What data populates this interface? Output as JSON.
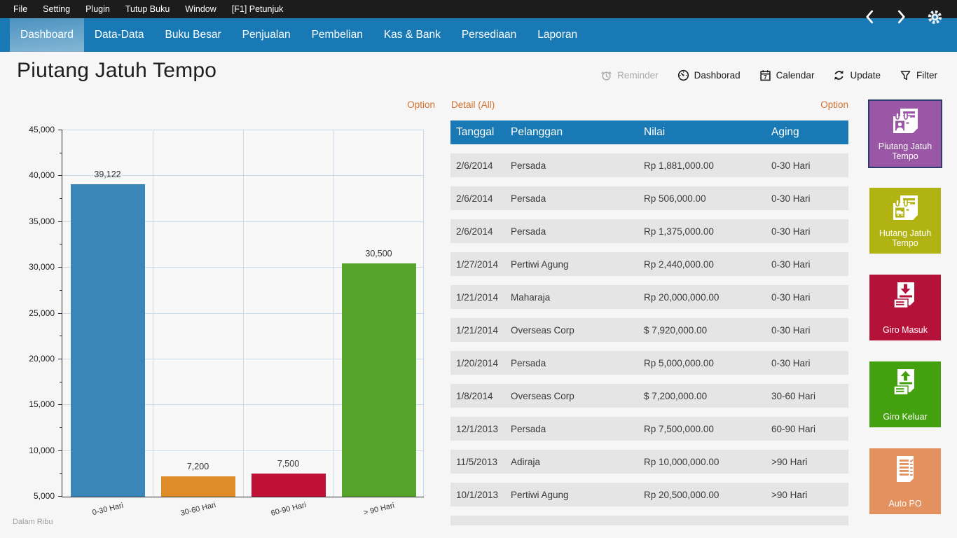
{
  "colors": {
    "menubar-bg": "#1c1c1c",
    "navbar-blue": "#1879b5",
    "tab-active-top": "#4b92c0",
    "tab-active-bottom": "#85b7d5",
    "page-bg": "#f6f6f6",
    "accent-link": "#d2722e",
    "table-header-bg": "#1879b5",
    "row-bg": "#e5e5e5",
    "grid-line": "#c8daec",
    "axis-color": "#2b2b2b",
    "selected-tile-border": "#2d3c6b"
  },
  "menubar": {
    "items": [
      "File",
      "Setting",
      "Plugin",
      "Tutup Buku",
      "Window",
      "[F1] Petunjuk"
    ]
  },
  "navbar": {
    "tabs": [
      {
        "label": "Dashboard",
        "active": true
      },
      {
        "label": "Data-Data",
        "active": false
      },
      {
        "label": "Buku Besar",
        "active": false
      },
      {
        "label": "Penjualan",
        "active": false
      },
      {
        "label": "Pembelian",
        "active": false
      },
      {
        "label": "Kas & Bank",
        "active": false
      },
      {
        "label": "Persediaan",
        "active": false
      },
      {
        "label": "Laporan",
        "active": false
      }
    ]
  },
  "header": {
    "title": "Piutang Jatuh Tempo",
    "actions": [
      {
        "label": "Reminder",
        "icon": "alarm-icon",
        "disabled": true
      },
      {
        "label": "Dashborad",
        "icon": "gauge-icon",
        "disabled": false
      },
      {
        "label": "Calendar",
        "icon": "calendar-icon",
        "disabled": false
      },
      {
        "label": "Update",
        "icon": "refresh-icon",
        "disabled": false
      },
      {
        "label": "Filter",
        "icon": "filter-icon",
        "disabled": false
      }
    ]
  },
  "chart_panel": {
    "option_label": "Option",
    "footnote": "Dalam Ribu"
  },
  "chart_data": {
    "type": "bar",
    "categories": [
      "0-30 Hari",
      "30-60 Hari",
      "60-90 Hari",
      "> 90 Hari"
    ],
    "values": [
      39122,
      7200,
      7500,
      30500
    ],
    "value_labels": [
      "39,122",
      "7,200",
      "7,500",
      "30,500"
    ],
    "bar_colors": [
      "#3a86b8",
      "#de8c28",
      "#c11036",
      "#57a42d"
    ],
    "ylim": [
      5000,
      45000
    ],
    "ytick_step": 5000,
    "grid": true,
    "unit_note": "Dalam Ribu",
    "title": "Piutang Jatuh Tempo"
  },
  "detail": {
    "title": "Detail (All)",
    "option_label": "Option",
    "columns": [
      "Tanggal",
      "Pelanggan",
      "Nilai",
      "Aging"
    ],
    "rows": [
      [
        "2/6/2014",
        "Persada",
        "Rp 1,881,000.00",
        "0-30 Hari"
      ],
      [
        "2/6/2014",
        "Persada",
        "Rp 506,000.00",
        "0-30 Hari"
      ],
      [
        "2/6/2014",
        "Persada",
        "Rp 1,375,000.00",
        "0-30 Hari"
      ],
      [
        "1/27/2014",
        "Pertiwi Agung",
        "Rp 2,440,000.00",
        "0-30 Hari"
      ],
      [
        "1/21/2014",
        "Maharaja",
        "Rp 20,000,000.00",
        "0-30 Hari"
      ],
      [
        "1/21/2014",
        "Overseas Corp",
        "$ 7,920,000.00",
        "0-30 Hari"
      ],
      [
        "1/20/2014",
        "Persada",
        "Rp 5,000,000.00",
        "0-30 Hari"
      ],
      [
        "1/8/2014",
        "Overseas Corp",
        "$ 7,200,000.00",
        "30-60 Hari"
      ],
      [
        "12/1/2013",
        "Persada",
        "Rp 7,500,000.00",
        "60-90 Hari"
      ],
      [
        "11/5/2013",
        "Adiraja",
        "Rp 10,000,000.00",
        ">90 Hari"
      ],
      [
        "10/1/2013",
        "Pertiwi Agung",
        "Rp 20,500,000.00",
        ">90 Hari"
      ]
    ],
    "empty_trailing_row": true
  },
  "tiles": [
    {
      "label": "Piutang Jatuh Tempo",
      "color": "#9a57a5",
      "icon": "receivable-due-icon",
      "selected": true
    },
    {
      "label": "Hutang Jatuh Tempo",
      "color": "#b1b312",
      "icon": "payable-due-icon",
      "selected": false
    },
    {
      "label": "Giro Masuk",
      "color": "#b41239",
      "icon": "giro-in-icon",
      "selected": false
    },
    {
      "label": "Giro Keluar",
      "color": "#43a00e",
      "icon": "giro-out-icon",
      "selected": false
    },
    {
      "label": "Auto PO",
      "color": "#e2915f",
      "icon": "auto-po-icon",
      "selected": false
    }
  ]
}
